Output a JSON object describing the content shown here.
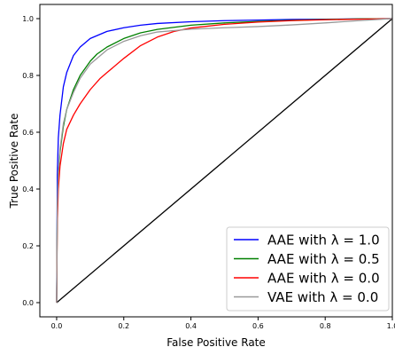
{
  "chart_data": {
    "type": "line",
    "title": "",
    "xlabel": "False Positive Rate",
    "ylabel": "True Positive Rate",
    "xlim": [
      -0.05,
      1.0
    ],
    "ylim": [
      -0.05,
      1.05
    ],
    "xticks": [
      0.0,
      0.2,
      0.4,
      0.6,
      0.8,
      1.0
    ],
    "yticks": [
      0.0,
      0.2,
      0.4,
      0.6,
      0.8,
      1.0
    ],
    "xtick_labels": [
      "0.0",
      "0.2",
      "0.4",
      "0.6",
      "0.8",
      "1.0"
    ],
    "ytick_labels": [
      "0.0",
      "0.2",
      "0.4",
      "0.6",
      "0.8",
      "1.0"
    ],
    "grid": false,
    "legend_position": "bottom-right",
    "series": [
      {
        "name": "AAE with λ = 1.0",
        "color": "#0000ff",
        "x": [
          0.0,
          0.002,
          0.005,
          0.01,
          0.02,
          0.03,
          0.05,
          0.07,
          0.1,
          0.15,
          0.2,
          0.25,
          0.3,
          0.4,
          0.5,
          0.6,
          0.7,
          0.8,
          0.9,
          1.0
        ],
        "y": [
          0.0,
          0.45,
          0.58,
          0.66,
          0.76,
          0.81,
          0.87,
          0.9,
          0.93,
          0.955,
          0.968,
          0.977,
          0.983,
          0.989,
          0.993,
          0.995,
          0.997,
          0.998,
          0.999,
          1.0
        ]
      },
      {
        "name": "AAE with λ = 0.5",
        "color": "#008000",
        "x": [
          0.0,
          0.002,
          0.005,
          0.01,
          0.02,
          0.03,
          0.05,
          0.07,
          0.1,
          0.12,
          0.15,
          0.2,
          0.25,
          0.3,
          0.4,
          0.5,
          0.6,
          0.7,
          0.8,
          0.9,
          1.0
        ],
        "y": [
          0.0,
          0.33,
          0.45,
          0.53,
          0.62,
          0.68,
          0.75,
          0.8,
          0.85,
          0.875,
          0.9,
          0.93,
          0.95,
          0.962,
          0.977,
          0.985,
          0.99,
          0.994,
          0.997,
          0.999,
          1.0
        ]
      },
      {
        "name": "AAE with λ = 0.0",
        "color": "#ff0000",
        "x": [
          0.0,
          0.002,
          0.005,
          0.01,
          0.02,
          0.03,
          0.05,
          0.07,
          0.1,
          0.13,
          0.15,
          0.2,
          0.25,
          0.3,
          0.35,
          0.4,
          0.5,
          0.6,
          0.7,
          0.8,
          0.9,
          1.0
        ],
        "y": [
          0.0,
          0.28,
          0.4,
          0.48,
          0.56,
          0.61,
          0.66,
          0.7,
          0.75,
          0.79,
          0.81,
          0.86,
          0.905,
          0.935,
          0.955,
          0.967,
          0.98,
          0.988,
          0.993,
          0.996,
          0.998,
          1.0
        ]
      },
      {
        "name": "VAE with λ = 0.0",
        "color": "#999999",
        "x": [
          0.0,
          0.002,
          0.005,
          0.01,
          0.02,
          0.03,
          0.05,
          0.07,
          0.1,
          0.15,
          0.2,
          0.25,
          0.3,
          0.4,
          0.5,
          0.6,
          0.7,
          0.8,
          0.9,
          1.0
        ],
        "y": [
          0.0,
          0.34,
          0.46,
          0.54,
          0.63,
          0.68,
          0.74,
          0.79,
          0.84,
          0.89,
          0.92,
          0.94,
          0.953,
          0.963,
          0.968,
          0.972,
          0.978,
          0.985,
          0.993,
          1.0
        ]
      },
      {
        "name": "",
        "color": "#000000",
        "x": [
          0.0,
          1.0
        ],
        "y": [
          0.0,
          1.0
        ]
      }
    ]
  }
}
